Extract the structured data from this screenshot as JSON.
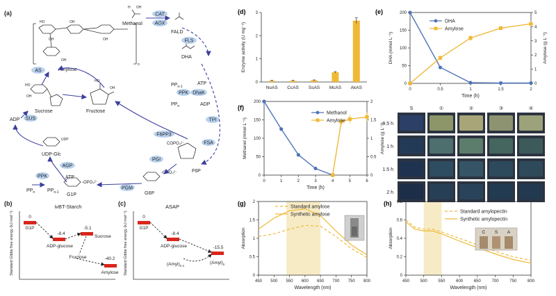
{
  "panels": {
    "a": "(a)",
    "b": "(b)",
    "c": "(c)",
    "d": "(d)",
    "e": "(e)",
    "f": "(f)",
    "g": "(g)",
    "h": "(h)"
  },
  "pathway": {
    "methanol": "Methanol",
    "fald": "FALD",
    "dha": "DHA",
    "amylose": "Amylose",
    "n_sub": "n",
    "sucrose": "Sucrose",
    "fructose": "Fructose",
    "adp": "ADP",
    "udpglc": "UDP-Glc",
    "udp": "UDP",
    "atp_a": "ATP",
    "atp_b": "ATP",
    "ppn1": "PP",
    "ppn1_sub": "n-1",
    "ppn": "PP",
    "ppn_sub": "n",
    "ppn_b": "PP",
    "ppn_b_sub": "n",
    "ppn1_b": "PP",
    "ppn1_b_sub": "n-1",
    "adp_b": "ADP",
    "g1p": "G1P",
    "g6p": "G6P",
    "f6p": "F6P",
    "opo3": "-OPO₃²⁻",
    "opo3_b": "-OPO₃²⁻",
    "copo3": "COPO₃²⁻"
  },
  "enzymes": {
    "cat": "CAT",
    "aox": "AOX",
    "fls": "FLS",
    "dhak": "DhaK",
    "ppk_top": "PPK",
    "tpi": "TPI",
    "fsa": "FSA",
    "pgi": "PGI",
    "pgm": "PGM",
    "f6pp3": "F6PP3",
    "agp": "AGP",
    "ppk_bottom": "PPK",
    "sus": "SUS",
    "as": "AS"
  },
  "colors": {
    "bubble": "#b9d2ee",
    "arrow": "#3b3f9e",
    "red": "#d9261c",
    "blue": "#4f74b8",
    "gold": "#efb936",
    "shade": "#f5e6b8"
  },
  "energy_b": {
    "title": "ivBT-Starch",
    "ylabel": "Standard Gibbs free energy (kJ mol⁻¹)",
    "species": [
      "G1P",
      "ADP-glucose",
      "Sucrose",
      "Fructose",
      "Amylose"
    ],
    "values": [
      "0",
      "-8.4",
      "-5.1",
      "-40.2"
    ]
  },
  "energy_c": {
    "title": "ASAP",
    "ylabel": "Standard Gibbs free energy (kJ mol⁻¹)",
    "species": [
      "G1P",
      "ADP-glucose",
      "(Amyl)",
      "(Amyl)"
    ],
    "subs": [
      "n-1",
      "n"
    ],
    "values": [
      "0",
      "-8.4",
      "-15.5"
    ]
  },
  "photo": {
    "cols": [
      "S",
      "①",
      "②",
      "③",
      "④"
    ],
    "rows": [
      "0.5 h",
      "1 h",
      "1.5 h",
      "2 h"
    ],
    "tints": [
      [
        "#2b3f67",
        "#8c9669",
        "#a8a678",
        "#8d9370",
        "#9ca27a"
      ],
      [
        "#233a57",
        "#4d6f6e",
        "#5c7c6c",
        "#45655f",
        "#3d5a5a"
      ],
      [
        "#1f3350",
        "#2e4d60",
        "#355566",
        "#2c4a5c",
        "#2e4a5a"
      ],
      [
        "#1c2e48",
        "#263f55",
        "#29435a",
        "#233b50",
        "#223950"
      ]
    ]
  },
  "chart_data": [
    {
      "id": "d",
      "type": "bar",
      "title": "",
      "categories": [
        "NoAS",
        "CcAS",
        "SsAS",
        "McAS",
        "AkAS"
      ],
      "values": [
        0.05,
        0.05,
        0.07,
        0.42,
        2.65
      ],
      "errors": [
        0.02,
        0.02,
        0.02,
        0.03,
        0.12
      ],
      "ylabel": "Enzyme activity (U mg⁻¹)",
      "ylim": [
        0,
        3
      ],
      "yticks": [
        0,
        1,
        2,
        3
      ],
      "grid": false
    },
    {
      "id": "e",
      "type": "line",
      "title": "",
      "x": [
        0,
        0.5,
        1,
        1.5,
        2
      ],
      "xticks": [
        0,
        0.5,
        1,
        1.5,
        2
      ],
      "xlabel": "Time (h)",
      "xlim": [
        0,
        2
      ],
      "ylabel": "DHA (mmol L⁻¹)",
      "ylim": [
        0,
        200
      ],
      "yticks": [
        0,
        50,
        100,
        150,
        200
      ],
      "y2label": "Amylose (g L⁻¹)",
      "y2lim": [
        0,
        5
      ],
      "y2ticks": [
        0,
        1,
        2,
        3,
        4,
        5
      ],
      "series": [
        {
          "name": "DHA",
          "axis": "left",
          "values": [
            200,
            45,
            2,
            1,
            1
          ]
        },
        {
          "name": "Amylose",
          "axis": "right",
          "values": [
            0,
            1.8,
            3.2,
            3.9,
            4.2
          ],
          "errors": [
            0,
            0.15,
            0.2,
            0.1,
            0.2
          ]
        }
      ],
      "legend": "top-left"
    },
    {
      "id": "f",
      "type": "line",
      "title": "",
      "x": [
        0,
        1,
        2,
        3,
        4,
        4.5,
        5,
        6
      ],
      "xticks": [
        0,
        1,
        2,
        3,
        4,
        5,
        6
      ],
      "xlabel": "Time (h)",
      "xlim": [
        0,
        6
      ],
      "ylabel": "Methanol (mmol L⁻¹)",
      "ylim": [
        0,
        200
      ],
      "yticks": [
        0,
        50,
        100,
        150,
        200
      ],
      "y2label": "Amylose (g L⁻¹)",
      "y2lim": [
        0,
        2
      ],
      "y2ticks": [
        0,
        0.5,
        1,
        1.5,
        2
      ],
      "series": [
        {
          "name": "Methanol",
          "axis": "left",
          "x": [
            0,
            1,
            2,
            3,
            4
          ],
          "values": [
            200,
            125,
            55,
            18,
            0
          ]
        },
        {
          "name": "Amylose",
          "axis": "right",
          "x": [
            4,
            4.5,
            5,
            6
          ],
          "values": [
            0,
            1.45,
            1.52,
            1.58
          ],
          "errors": [
            0,
            0.1,
            0.12,
            0.12
          ]
        }
      ],
      "legend": "top-right"
    },
    {
      "id": "g",
      "type": "line",
      "title": "",
      "x": [
        450,
        500,
        550,
        600,
        650,
        700,
        750,
        800
      ],
      "xticks": [
        450,
        500,
        550,
        600,
        650,
        700,
        750,
        800
      ],
      "xlabel": "Wavelength (nm)",
      "xlim": [
        450,
        800
      ],
      "ylabel": "Absorption",
      "ylim": [
        0,
        2
      ],
      "yticks": [
        0,
        0.5,
        1,
        1.5,
        2
      ],
      "shaded": [
        540,
        650
      ],
      "series": [
        {
          "name": "Standard amylose",
          "style": "dashed",
          "values": [
            1.05,
            1.12,
            1.25,
            1.35,
            1.33,
            1.05,
            0.72,
            0.48
          ]
        },
        {
          "name": "Synthetic amylose",
          "style": "solid",
          "values": [
            1.25,
            1.55,
            1.75,
            1.8,
            1.62,
            1.2,
            0.82,
            0.55
          ]
        }
      ],
      "legend": "top-left"
    },
    {
      "id": "h",
      "type": "line",
      "title": "",
      "x": [
        450,
        475,
        500,
        525,
        550,
        600,
        650,
        700,
        750,
        800
      ],
      "xticks": [
        450,
        500,
        550,
        600,
        650,
        700,
        750,
        800
      ],
      "xlabel": "Wavelength (nm)",
      "xlim": [
        450,
        800
      ],
      "ylabel": "Absorption",
      "ylim": [
        0,
        0.8
      ],
      "yticks": [
        0,
        0.2,
        0.4,
        0.6,
        0.8
      ],
      "shaded": [
        500,
        550
      ],
      "inset_labels": [
        "C",
        "S",
        "A"
      ],
      "series": [
        {
          "name": "Standard amylopectin",
          "style": "dashed",
          "values": [
            0.6,
            0.52,
            0.5,
            0.5,
            0.47,
            0.4,
            0.33,
            0.26,
            0.2,
            0.16
          ]
        },
        {
          "name": "Synthetic amylopectin",
          "style": "solid",
          "values": [
            0.58,
            0.5,
            0.48,
            0.48,
            0.45,
            0.37,
            0.3,
            0.23,
            0.17,
            0.13
          ]
        }
      ],
      "legend": "top-right"
    }
  ]
}
